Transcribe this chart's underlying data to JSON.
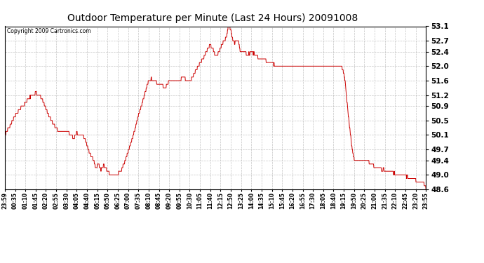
{
  "title": "Outdoor Temperature per Minute (Last 24 Hours) 20091008",
  "copyright": "Copyright 2009 Cartronics.com",
  "line_color": "#cc0000",
  "background_color": "#ffffff",
  "grid_color": "#aaaaaa",
  "ylim": [
    48.6,
    53.1
  ],
  "yticks": [
    48.6,
    49.0,
    49.4,
    49.7,
    50.1,
    50.5,
    50.9,
    51.2,
    51.6,
    52.0,
    52.4,
    52.7,
    53.1
  ],
  "x_labels": [
    "23:59",
    "00:35",
    "01:10",
    "01:45",
    "02:20",
    "02:55",
    "03:30",
    "04:05",
    "04:40",
    "05:15",
    "05:50",
    "06:25",
    "07:00",
    "07:35",
    "08:10",
    "08:45",
    "09:20",
    "09:55",
    "10:30",
    "11:05",
    "11:40",
    "12:15",
    "12:50",
    "13:25",
    "14:00",
    "14:35",
    "15:10",
    "15:45",
    "16:20",
    "16:55",
    "17:30",
    "18:05",
    "18:40",
    "19:15",
    "19:50",
    "20:25",
    "21:00",
    "21:35",
    "22:10",
    "22:45",
    "23:20",
    "23:55"
  ],
  "control_points": [
    [
      0,
      50.1
    ],
    [
      15,
      50.3
    ],
    [
      30,
      50.55
    ],
    [
      50,
      50.8
    ],
    [
      70,
      51.0
    ],
    [
      90,
      51.15
    ],
    [
      105,
      51.2
    ],
    [
      120,
      51.15
    ],
    [
      135,
      50.9
    ],
    [
      150,
      50.6
    ],
    [
      165,
      50.35
    ],
    [
      180,
      50.2
    ],
    [
      195,
      50.15
    ],
    [
      205,
      50.2
    ],
    [
      215,
      50.15
    ],
    [
      225,
      50.05
    ],
    [
      235,
      49.95
    ],
    [
      245,
      50.1
    ],
    [
      255,
      50.05
    ],
    [
      268,
      50.05
    ],
    [
      278,
      49.85
    ],
    [
      290,
      49.6
    ],
    [
      300,
      49.5
    ],
    [
      312,
      49.2
    ],
    [
      320,
      49.35
    ],
    [
      328,
      49.15
    ],
    [
      338,
      49.3
    ],
    [
      345,
      49.2
    ],
    [
      355,
      49.1
    ],
    [
      362,
      49.05
    ],
    [
      372,
      49.1
    ],
    [
      380,
      49.05
    ],
    [
      390,
      49.1
    ],
    [
      400,
      49.2
    ],
    [
      415,
      49.5
    ],
    [
      430,
      49.9
    ],
    [
      445,
      50.3
    ],
    [
      458,
      50.7
    ],
    [
      470,
      51.0
    ],
    [
      480,
      51.3
    ],
    [
      490,
      51.55
    ],
    [
      500,
      51.65
    ],
    [
      510,
      51.6
    ],
    [
      520,
      51.55
    ],
    [
      530,
      51.5
    ],
    [
      540,
      51.45
    ],
    [
      550,
      51.4
    ],
    [
      560,
      51.55
    ],
    [
      568,
      51.6
    ],
    [
      578,
      51.55
    ],
    [
      588,
      51.55
    ],
    [
      600,
      51.6
    ],
    [
      612,
      51.7
    ],
    [
      620,
      51.55
    ],
    [
      630,
      51.55
    ],
    [
      640,
      51.6
    ],
    [
      655,
      51.85
    ],
    [
      668,
      52.05
    ],
    [
      680,
      52.2
    ],
    [
      692,
      52.4
    ],
    [
      700,
      52.5
    ],
    [
      710,
      52.45
    ],
    [
      718,
      52.25
    ],
    [
      728,
      52.3
    ],
    [
      738,
      52.5
    ],
    [
      748,
      52.65
    ],
    [
      758,
      52.8
    ],
    [
      763,
      53.05
    ],
    [
      768,
      53.1
    ],
    [
      773,
      52.95
    ],
    [
      778,
      52.75
    ],
    [
      785,
      52.6
    ],
    [
      792,
      52.7
    ],
    [
      798,
      52.7
    ],
    [
      805,
      52.4
    ],
    [
      812,
      52.35
    ],
    [
      820,
      52.4
    ],
    [
      828,
      52.3
    ],
    [
      835,
      52.35
    ],
    [
      843,
      52.35
    ],
    [
      850,
      52.35
    ],
    [
      858,
      52.3
    ],
    [
      865,
      52.25
    ],
    [
      875,
      52.2
    ],
    [
      885,
      52.2
    ],
    [
      895,
      52.15
    ],
    [
      910,
      52.1
    ],
    [
      925,
      52.05
    ],
    [
      940,
      52.0
    ],
    [
      960,
      52.0
    ],
    [
      980,
      52.0
    ],
    [
      1000,
      52.0
    ],
    [
      1020,
      52.0
    ],
    [
      1040,
      52.0
    ],
    [
      1060,
      52.0
    ],
    [
      1080,
      52.0
    ],
    [
      1100,
      52.0
    ],
    [
      1120,
      52.0
    ],
    [
      1140,
      52.0
    ],
    [
      1155,
      51.95
    ],
    [
      1163,
      51.6
    ],
    [
      1170,
      51.0
    ],
    [
      1178,
      50.4
    ],
    [
      1185,
      49.9
    ],
    [
      1192,
      49.5
    ],
    [
      1198,
      49.4
    ],
    [
      1205,
      49.4
    ],
    [
      1215,
      49.4
    ],
    [
      1225,
      49.4
    ],
    [
      1235,
      49.4
    ],
    [
      1245,
      49.35
    ],
    [
      1258,
      49.3
    ],
    [
      1272,
      49.2
    ],
    [
      1288,
      49.15
    ],
    [
      1305,
      49.1
    ],
    [
      1322,
      49.05
    ],
    [
      1340,
      49.0
    ],
    [
      1360,
      48.95
    ],
    [
      1380,
      48.9
    ],
    [
      1400,
      48.85
    ],
    [
      1418,
      48.8
    ],
    [
      1430,
      48.75
    ],
    [
      1439,
      48.65
    ]
  ]
}
